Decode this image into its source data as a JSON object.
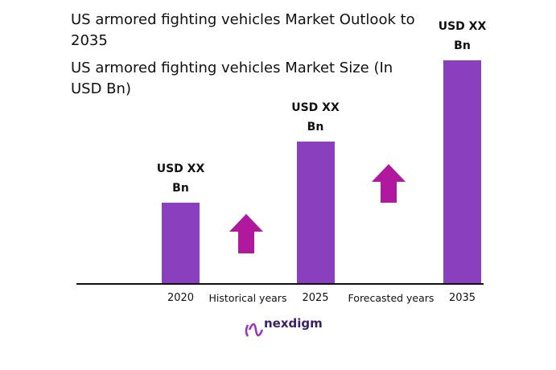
{
  "chart_data": {
    "type": "bar",
    "title": "US armored fighting vehicles Market Outlook to 2035",
    "subtitle": "US armored fighting vehicles Market Size (In USD Bn)",
    "categories": [
      "2020",
      "2025",
      "2035"
    ],
    "values": [
      100,
      176,
      277
    ],
    "value_labels": [
      "USD XX Bn",
      "USD XX Bn",
      "USD XX Bn"
    ],
    "color": "#8a3fbf",
    "annotations": [
      "Historical years",
      "Forecasted years"
    ],
    "brand": "nexdigm"
  }
}
